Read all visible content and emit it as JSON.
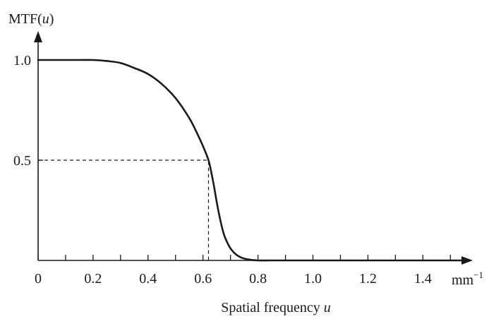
{
  "chart_data": {
    "type": "line",
    "title": "",
    "ylabel_prefix": "MTF(",
    "ylabel_var": "u",
    "ylabel_suffix": ")",
    "xlabel_prefix": "Spatial frequency ",
    "xlabel_var": "u",
    "x_unit_base": "mm",
    "x_unit_exp": "−1",
    "xlim": [
      0,
      1.55
    ],
    "ylim": [
      0,
      1.0
    ],
    "x_ticks": [
      0,
      0.2,
      0.4,
      0.6,
      0.8,
      1.0,
      1.2,
      1.4
    ],
    "x_tick_labels": [
      "0",
      "0.2",
      "0.4",
      "0.6",
      "0.8",
      "1.0",
      "1.2",
      "1.4"
    ],
    "x_minor_ticks": [
      0.1,
      0.3,
      0.5,
      0.7,
      0.9,
      1.1,
      1.3,
      1.5
    ],
    "y_ticks": [
      0.5,
      1.0
    ],
    "y_tick_labels": [
      "0.5",
      "1.0"
    ],
    "grid": false,
    "reference_point": {
      "x": 0.62,
      "y": 0.5
    },
    "series": [
      {
        "x": [
          0,
          0.05,
          0.1,
          0.15,
          0.2,
          0.25,
          0.3,
          0.35,
          0.4,
          0.45,
          0.5,
          0.55,
          0.58,
          0.6,
          0.62,
          0.63,
          0.64,
          0.65,
          0.66,
          0.67,
          0.68,
          0.7,
          0.72,
          0.74,
          0.76,
          0.78,
          0.8,
          0.85,
          0.9,
          1.0,
          1.1,
          1.2,
          1.3,
          1.4,
          1.5,
          1.55
        ],
        "y": [
          1.0,
          1.0,
          1.0,
          1.0,
          1.0,
          0.995,
          0.985,
          0.96,
          0.93,
          0.88,
          0.81,
          0.71,
          0.63,
          0.57,
          0.5,
          0.44,
          0.37,
          0.29,
          0.22,
          0.16,
          0.115,
          0.06,
          0.03,
          0.014,
          0.006,
          0.002,
          0.0,
          0.0,
          0.0,
          0.0,
          0.0,
          0.0,
          0.0,
          0.0,
          0.0,
          0.0
        ]
      }
    ]
  }
}
